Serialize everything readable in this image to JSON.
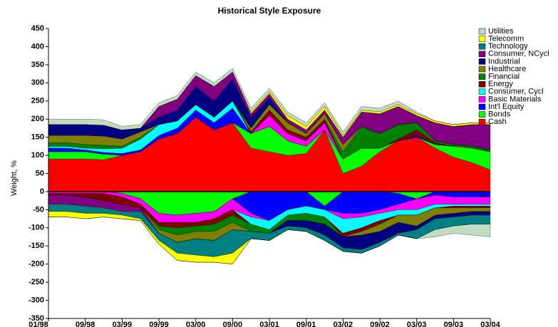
{
  "chart_data": {
    "type": "area",
    "title": "Historical Style Exposure",
    "y_label": "Weight, %",
    "categories": [
      "01/98",
      null,
      "09/98",
      null,
      "03/99",
      null,
      "09/99",
      null,
      "03/00",
      null,
      "09/00",
      null,
      "03/01",
      null,
      "09/01",
      null,
      "03/02",
      null,
      "09/02",
      null,
      "03/03",
      null,
      "09/03",
      null,
      "03/04"
    ],
    "stacked": true,
    "legend": "right",
    "ylim": [
      -350,
      450
    ],
    "yticks": [
      -350,
      -300,
      -250,
      -200,
      -150,
      -100,
      -50,
      0,
      50,
      100,
      150,
      200,
      250,
      300,
      350,
      400,
      450
    ],
    "series": [
      {
        "name": "Cash",
        "color": "#ff0000",
        "values": [
          90,
          90,
          90,
          88,
          100,
          110,
          145,
          160,
          205,
          170,
          190,
          120,
          110,
          100,
          105,
          170,
          50,
          70,
          110,
          140,
          150,
          120,
          95,
          80,
          60
        ]
      },
      {
        "name": "Bonds",
        "color": "#00ff00",
        "values": [
          20,
          20,
          20,
          15,
          -5,
          -20,
          -60,
          -65,
          -60,
          -55,
          -20,
          40,
          70,
          40,
          20,
          -40,
          40,
          50,
          10,
          -5,
          -20,
          10,
          30,
          40,
          50
        ]
      },
      {
        "name": "Int'l Equity",
        "color": "#0000ff",
        "values": [
          10,
          10,
          5,
          5,
          5,
          5,
          10,
          15,
          20,
          20,
          40,
          -60,
          -80,
          -50,
          -40,
          -10,
          -60,
          -60,
          -50,
          -30,
          5,
          -10,
          -15,
          -15,
          -15
        ]
      },
      {
        "name": "Basic Materials",
        "color": "#ff00ff",
        "values": [
          -5,
          -5,
          -5,
          -5,
          -10,
          -15,
          -25,
          -20,
          -25,
          -20,
          -30,
          -10,
          30,
          20,
          15,
          20,
          -15,
          -10,
          -10,
          -15,
          -30,
          -25,
          -20,
          -20,
          -20
        ]
      },
      {
        "name": "Consumer, Cycl",
        "color": "#00ffff",
        "values": [
          5,
          5,
          5,
          10,
          15,
          30,
          30,
          20,
          15,
          15,
          20,
          -20,
          -25,
          -15,
          -20,
          -20,
          -40,
          -30,
          -20,
          -15,
          -15,
          -10,
          -5,
          -5,
          -5
        ]
      },
      {
        "name": "Energy",
        "color": "#800000",
        "values": [
          -5,
          -5,
          -10,
          -20,
          -20,
          -10,
          -10,
          -15,
          -10,
          -15,
          -15,
          5,
          15,
          10,
          10,
          10,
          -10,
          -10,
          -10,
          5,
          15,
          5,
          -5,
          -5,
          -5
        ]
      },
      {
        "name": "Financial",
        "color": "#008000",
        "values": [
          10,
          10,
          10,
          10,
          5,
          5,
          -10,
          -20,
          -15,
          -20,
          -20,
          -20,
          -10,
          -15,
          -20,
          -20,
          20,
          60,
          40,
          40,
          20,
          5,
          5,
          5,
          5
        ]
      },
      {
        "name": "Healthcare",
        "color": "#808000",
        "values": [
          20,
          20,
          25,
          25,
          20,
          15,
          -10,
          -20,
          -20,
          -25,
          -20,
          10,
          15,
          20,
          10,
          15,
          20,
          -10,
          -20,
          -20,
          -30,
          -20,
          -15,
          -10,
          -10
        ]
      },
      {
        "name": "Industrial",
        "color": "#000080",
        "values": [
          30,
          30,
          30,
          30,
          25,
          10,
          20,
          30,
          50,
          45,
          60,
          30,
          20,
          -15,
          -20,
          -30,
          -30,
          -40,
          -30,
          -30,
          -10,
          -10,
          -10,
          -10,
          -10
        ]
      },
      {
        "name": "Consumer, NCycl",
        "color": "#800080",
        "values": [
          -25,
          -25,
          -25,
          -20,
          -20,
          -10,
          30,
          30,
          30,
          40,
          20,
          10,
          10,
          10,
          10,
          10,
          20,
          40,
          55,
          50,
          20,
          50,
          50,
          60,
          70
        ]
      },
      {
        "name": "Technology",
        "color": "#008080",
        "values": [
          -20,
          -20,
          -20,
          -15,
          -10,
          -20,
          -20,
          -30,
          -45,
          -45,
          -65,
          -20,
          -20,
          -10,
          -10,
          -15,
          -10,
          -10,
          -10,
          -5,
          -25,
          -30,
          -25,
          -25,
          -25
        ]
      },
      {
        "name": "Telecomm",
        "color": "#ffff00",
        "values": [
          -15,
          -15,
          -15,
          -10,
          -10,
          -5,
          -10,
          -20,
          -20,
          -15,
          -30,
          5,
          5,
          10,
          10,
          10,
          5,
          5,
          5,
          5,
          5,
          5,
          5,
          5,
          5
        ]
      },
      {
        "name": "Utilities",
        "color": "#c0dcc0",
        "values": [
          15,
          15,
          15,
          15,
          10,
          10,
          10,
          10,
          10,
          10,
          10,
          10,
          10,
          10,
          10,
          10,
          10,
          10,
          10,
          10,
          5,
          -20,
          -20,
          -30,
          -35
        ]
      }
    ]
  }
}
